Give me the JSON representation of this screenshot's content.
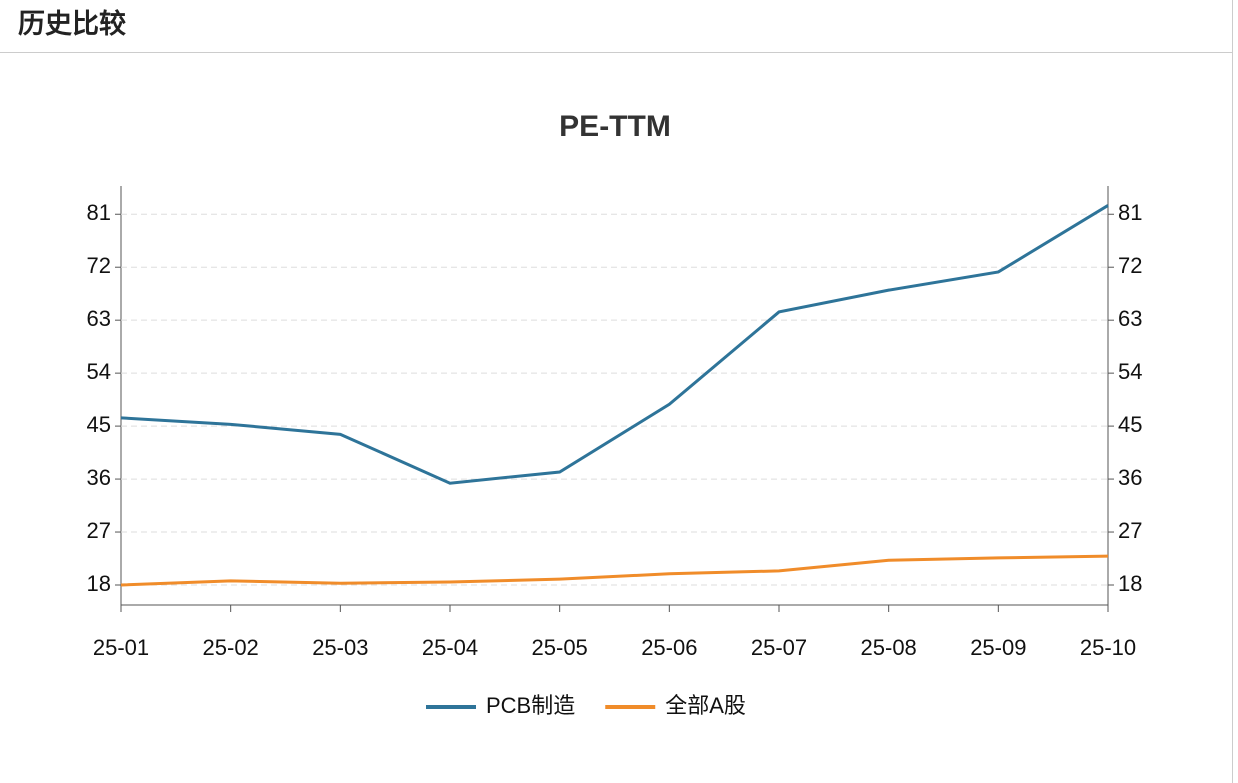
{
  "header": {
    "title": "历史比较"
  },
  "chart_data": {
    "type": "line",
    "title": "PE-TTM",
    "categories": [
      "25-01",
      "25-02",
      "25-03",
      "25-04",
      "25-05",
      "25-06",
      "25-07",
      "25-08",
      "25-09",
      "25-10"
    ],
    "series": [
      {
        "name": "PCB制造",
        "color": "#2e7499",
        "values": [
          46.4,
          45.3,
          43.6,
          35.3,
          37.2,
          48.7,
          64.4,
          68.1,
          71.2,
          82.5
        ]
      },
      {
        "name": "全部A股",
        "color": "#f08c2a",
        "values": [
          18.0,
          18.7,
          18.3,
          18.5,
          19.0,
          19.9,
          20.4,
          22.2,
          22.6,
          22.9
        ]
      }
    ],
    "ylim": [
      14.6,
      85.8
    ],
    "yticks": [
      18,
      27,
      36,
      45,
      54,
      63,
      72,
      81
    ],
    "y2lim": [
      14.6,
      85.8
    ],
    "y2ticks": [
      18,
      27,
      36,
      45,
      54,
      63,
      72,
      81
    ],
    "grid": true,
    "legend": "bottom"
  }
}
